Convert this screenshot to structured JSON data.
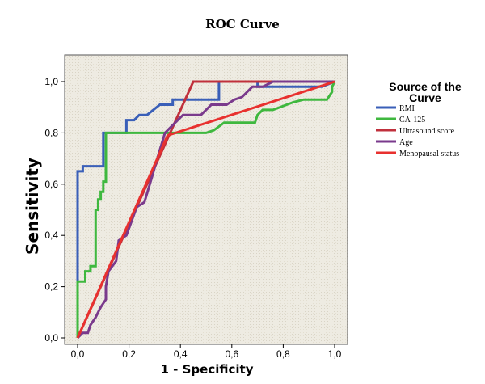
{
  "chart_data": {
    "type": "line",
    "title": "ROC Curve",
    "xlabel": "1 - Specificity",
    "ylabel": "Sensitivity",
    "xlim": [
      0,
      1
    ],
    "ylim": [
      0,
      1
    ],
    "x_ticks": [
      "0,0",
      "0,2",
      "0,4",
      "0,6",
      "0,8",
      "1,0"
    ],
    "y_ticks": [
      "0,0",
      "0,2",
      "0,4",
      "0,6",
      "0,8",
      "1,0"
    ],
    "legend_title_lines": [
      "Source of the",
      "Curve"
    ],
    "legend_position": "right",
    "series": [
      {
        "name": "RMI",
        "color": "#3a5fb8",
        "points": [
          [
            0,
            0
          ],
          [
            0,
            0.65
          ],
          [
            0.02,
            0.65
          ],
          [
            0.02,
            0.67
          ],
          [
            0.1,
            0.67
          ],
          [
            0.1,
            0.8
          ],
          [
            0.19,
            0.8
          ],
          [
            0.19,
            0.85
          ],
          [
            0.22,
            0.85
          ],
          [
            0.24,
            0.87
          ],
          [
            0.27,
            0.87
          ],
          [
            0.32,
            0.91
          ],
          [
            0.37,
            0.91
          ],
          [
            0.37,
            0.93
          ],
          [
            0.55,
            0.93
          ],
          [
            0.55,
            1.0
          ],
          [
            0.7,
            1.0
          ],
          [
            0.7,
            0.98
          ],
          [
            0.95,
            0.98
          ],
          [
            1.0,
            1.0
          ]
        ]
      },
      {
        "name": "CA-125",
        "color": "#3fb83f",
        "points": [
          [
            0,
            0
          ],
          [
            0,
            0.22
          ],
          [
            0.03,
            0.22
          ],
          [
            0.03,
            0.26
          ],
          [
            0.05,
            0.26
          ],
          [
            0.05,
            0.28
          ],
          [
            0.07,
            0.28
          ],
          [
            0.07,
            0.5
          ],
          [
            0.08,
            0.5
          ],
          [
            0.08,
            0.54
          ],
          [
            0.09,
            0.54
          ],
          [
            0.09,
            0.57
          ],
          [
            0.1,
            0.57
          ],
          [
            0.1,
            0.61
          ],
          [
            0.11,
            0.61
          ],
          [
            0.11,
            0.8
          ],
          [
            0.5,
            0.8
          ],
          [
            0.53,
            0.81
          ],
          [
            0.57,
            0.84
          ],
          [
            0.69,
            0.84
          ],
          [
            0.7,
            0.87
          ],
          [
            0.72,
            0.89
          ],
          [
            0.76,
            0.89
          ],
          [
            0.84,
            0.92
          ],
          [
            0.88,
            0.93
          ],
          [
            0.97,
            0.93
          ],
          [
            0.99,
            0.96
          ],
          [
            0.99,
            0.98
          ],
          [
            1.0,
            1.0
          ]
        ]
      },
      {
        "name": "Ultrasound score",
        "color": "#c0303c",
        "points": [
          [
            0,
            0
          ],
          [
            0.45,
            1.0
          ],
          [
            1.0,
            1.0
          ]
        ]
      },
      {
        "name": "Age",
        "color": "#7a3a8c",
        "points": [
          [
            0,
            0
          ],
          [
            0.02,
            0.02
          ],
          [
            0.04,
            0.02
          ],
          [
            0.05,
            0.05
          ],
          [
            0.07,
            0.08
          ],
          [
            0.09,
            0.12
          ],
          [
            0.11,
            0.15
          ],
          [
            0.11,
            0.2
          ],
          [
            0.12,
            0.26
          ],
          [
            0.15,
            0.3
          ],
          [
            0.16,
            0.38
          ],
          [
            0.19,
            0.4
          ],
          [
            0.23,
            0.51
          ],
          [
            0.26,
            0.53
          ],
          [
            0.29,
            0.63
          ],
          [
            0.31,
            0.7
          ],
          [
            0.34,
            0.8
          ],
          [
            0.38,
            0.84
          ],
          [
            0.41,
            0.87
          ],
          [
            0.48,
            0.87
          ],
          [
            0.52,
            0.91
          ],
          [
            0.58,
            0.91
          ],
          [
            0.61,
            0.93
          ],
          [
            0.64,
            0.94
          ],
          [
            0.68,
            0.98
          ],
          [
            0.72,
            0.98
          ],
          [
            0.76,
            1.0
          ],
          [
            1.0,
            1.0
          ]
        ]
      },
      {
        "name": "Menopausal status",
        "color": "#e8312f",
        "points": [
          [
            0,
            0
          ],
          [
            0.35,
            0.79
          ],
          [
            1.0,
            1.0
          ]
        ]
      }
    ]
  }
}
